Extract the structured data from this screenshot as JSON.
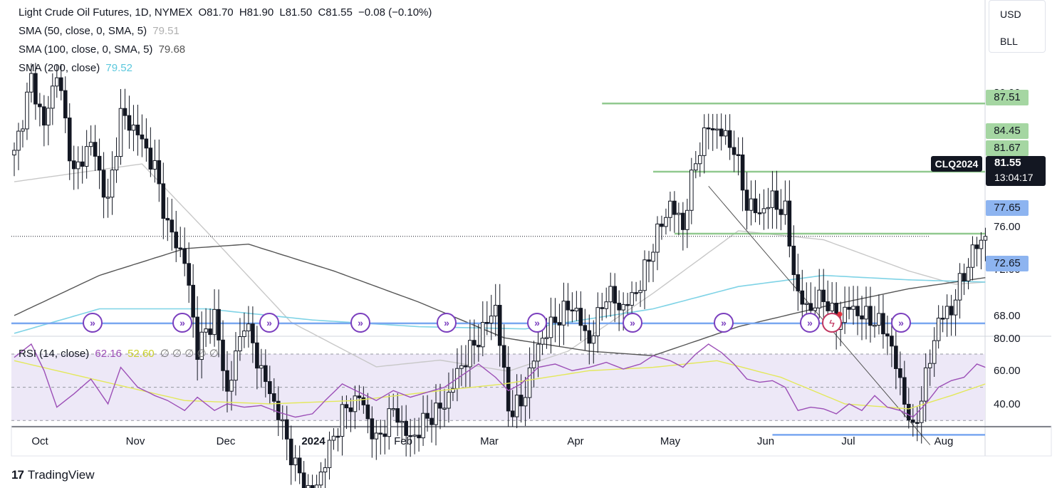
{
  "legend": {
    "title": "Light Crude Oil Futures, 1D, NYMEX",
    "open": "O81.70",
    "high": "H81.90",
    "low": "L81.50",
    "close": "C81.55",
    "change": "−0.08 (−0.10%)",
    "sma50_label": "SMA (50, close, 0, SMA, 5)",
    "sma50_value": "79.51",
    "sma100_label": "SMA (100, close, 0, SMA, 5)",
    "sma100_value": "79.68",
    "sma200_label": "SMA (200, close)",
    "sma200_value": "79.52",
    "rsi_label": "RSI (14, close)",
    "rsi_value": "62.16",
    "rsi_ma_value": "52.60",
    "rsi_extra": "∅ ∅ ∅ ∅ ∅"
  },
  "toolbar": {
    "currency": "USD",
    "unit": "BLL"
  },
  "ticker": {
    "symbol": "CLQ2024",
    "last_price": "81.55",
    "countdown": "13:04:17"
  },
  "levels": [
    "87.51",
    "84.45",
    "81.67",
    "77.65",
    "72.65"
  ],
  "brand": "TradingView",
  "colors": {
    "up": "#ffffff",
    "down": "#131722",
    "sma50": "#c8c8c8",
    "sma100": "#555555",
    "sma200": "#7fd3e6",
    "resistance": "#91c98f",
    "support": "#7aa7f0",
    "rsi": "#9c4fb7",
    "rsi_ma": "#e3e85a",
    "rsi_band": "#ede8f7"
  },
  "chart_data": {
    "type": "candlestick",
    "y_axis_ticks": [
      "80.00",
      "76.00",
      "72.00",
      "68.00"
    ],
    "rsi_axis_ticks": [
      "80.00",
      "60.00",
      "40.00"
    ],
    "x_axis_labels": [
      "Oct",
      "Nov",
      "Dec",
      "2024",
      "Feb",
      "Mar",
      "Apr",
      "May",
      "Jun",
      "Jul",
      "Aug"
    ],
    "ylim": [
      66,
      91
    ],
    "rsi_ylim": [
      25,
      82
    ],
    "horizontal_levels": [
      {
        "price": 87.51,
        "label": "87.51",
        "kind": "resistance"
      },
      {
        "price": 84.45,
        "label": "84.45",
        "kind": "resistance"
      },
      {
        "price": 81.67,
        "label": "81.67",
        "kind": "resistance"
      },
      {
        "price": 77.65,
        "label": "77.65",
        "kind": "support"
      },
      {
        "price": 72.65,
        "label": "72.65",
        "kind": "support"
      }
    ],
    "close_path": [
      [
        0,
        85.2
      ],
      [
        4,
        88.6
      ],
      [
        7,
        86.5
      ],
      [
        10,
        89.0
      ],
      [
        14,
        84.3
      ],
      [
        18,
        85.8
      ],
      [
        22,
        83.0
      ],
      [
        25,
        87.0
      ],
      [
        29,
        86.2
      ],
      [
        33,
        84.6
      ],
      [
        36,
        82.0
      ],
      [
        40,
        80.5
      ],
      [
        43,
        76.5
      ],
      [
        47,
        78.0
      ],
      [
        50,
        74.5
      ],
      [
        54,
        77.8
      ],
      [
        58,
        75.5
      ],
      [
        62,
        73.6
      ],
      [
        66,
        71.2
      ],
      [
        70,
        69.8
      ],
      [
        73,
        71.5
      ],
      [
        77,
        73.6
      ],
      [
        81,
        74.4
      ],
      [
        85,
        72.3
      ],
      [
        89,
        73.8
      ],
      [
        93,
        72.4
      ],
      [
        97,
        73.4
      ],
      [
        101,
        74.0
      ],
      [
        105,
        75.8
      ],
      [
        109,
        77.0
      ],
      [
        113,
        78.4
      ],
      [
        116,
        73.8
      ],
      [
        119,
        74.0
      ],
      [
        123,
        76.7
      ],
      [
        127,
        77.8
      ],
      [
        131,
        78.5
      ],
      [
        135,
        76.8
      ],
      [
        139,
        79.0
      ],
      [
        143,
        78.3
      ],
      [
        147,
        79.4
      ],
      [
        150,
        81.2
      ],
      [
        154,
        83.0
      ],
      [
        157,
        82.0
      ],
      [
        160,
        85.0
      ],
      [
        163,
        86.5
      ],
      [
        166,
        86.2
      ],
      [
        169,
        85.5
      ],
      [
        172,
        83.0
      ],
      [
        175,
        82.6
      ],
      [
        178,
        83.2
      ],
      [
        181,
        82.6
      ],
      [
        184,
        78.8
      ],
      [
        187,
        78.3
      ],
      [
        190,
        78.9
      ],
      [
        193,
        77.6
      ],
      [
        196,
        78.4
      ],
      [
        199,
        78.0
      ],
      [
        202,
        77.8
      ],
      [
        205,
        77.2
      ],
      [
        208,
        75.0
      ],
      [
        211,
        72.7
      ],
      [
        214,
        75.2
      ],
      [
        217,
        77.8
      ],
      [
        220,
        78.3
      ],
      [
        223,
        79.9
      ],
      [
        226,
        81.2
      ],
      [
        228,
        81.55
      ]
    ],
    "sma50_path": [
      [
        0,
        84.0
      ],
      [
        30,
        84.8
      ],
      [
        45,
        81.8
      ],
      [
        65,
        77.7
      ],
      [
        85,
        75.7
      ],
      [
        100,
        76.0
      ],
      [
        116,
        75.5
      ],
      [
        130,
        76.4
      ],
      [
        150,
        79.0
      ],
      [
        170,
        81.8
      ],
      [
        190,
        81.4
      ],
      [
        210,
        80.0
      ],
      [
        221,
        79.4
      ],
      [
        228,
        79.5
      ]
    ],
    "sma100_path": [
      [
        0,
        78.0
      ],
      [
        20,
        79.8
      ],
      [
        40,
        81.0
      ],
      [
        55,
        81.2
      ],
      [
        75,
        80.0
      ],
      [
        95,
        78.6
      ],
      [
        115,
        77.0
      ],
      [
        135,
        76.4
      ],
      [
        150,
        76.2
      ],
      [
        170,
        77.5
      ],
      [
        190,
        78.4
      ],
      [
        210,
        79.2
      ],
      [
        228,
        79.7
      ]
    ],
    "sma200_path": [
      [
        0,
        77.2
      ],
      [
        20,
        78.3
      ],
      [
        45,
        78.3
      ],
      [
        70,
        77.8
      ],
      [
        95,
        77.5
      ],
      [
        120,
        77.4
      ],
      [
        150,
        78.3
      ],
      [
        170,
        79.3
      ],
      [
        190,
        79.8
      ],
      [
        210,
        79.6
      ],
      [
        228,
        79.5
      ]
    ],
    "trendline": [
      [
        163,
        83.8
      ],
      [
        215,
        72.2
      ]
    ],
    "rsi_path": [
      [
        0,
        68
      ],
      [
        4,
        76
      ],
      [
        7,
        60
      ],
      [
        10,
        38
      ],
      [
        14,
        46
      ],
      [
        18,
        55
      ],
      [
        22,
        40
      ],
      [
        25,
        62
      ],
      [
        29,
        50
      ],
      [
        33,
        45
      ],
      [
        36,
        42
      ],
      [
        40,
        36
      ],
      [
        43,
        44
      ],
      [
        47,
        36
      ],
      [
        50,
        40
      ],
      [
        54,
        38
      ],
      [
        58,
        39
      ],
      [
        62,
        35
      ],
      [
        66,
        32
      ],
      [
        70,
        34
      ],
      [
        73,
        42
      ],
      [
        77,
        52
      ],
      [
        81,
        47
      ],
      [
        85,
        42
      ],
      [
        89,
        48
      ],
      [
        93,
        44
      ],
      [
        97,
        47
      ],
      [
        101,
        50
      ],
      [
        105,
        57
      ],
      [
        109,
        64
      ],
      [
        113,
        56
      ],
      [
        116,
        48
      ],
      [
        119,
        52
      ],
      [
        123,
        62
      ],
      [
        127,
        64
      ],
      [
        131,
        60
      ],
      [
        135,
        62
      ],
      [
        139,
        65
      ],
      [
        143,
        61
      ],
      [
        147,
        64
      ],
      [
        150,
        69
      ],
      [
        154,
        66
      ],
      [
        157,
        62
      ],
      [
        160,
        70
      ],
      [
        163,
        76
      ],
      [
        166,
        71
      ],
      [
        169,
        64
      ],
      [
        172,
        55
      ],
      [
        175,
        53
      ],
      [
        178,
        54
      ],
      [
        181,
        50
      ],
      [
        184,
        36
      ],
      [
        187,
        38
      ],
      [
        190,
        37
      ],
      [
        193,
        34
      ],
      [
        196,
        40
      ],
      [
        199,
        36
      ],
      [
        202,
        45
      ],
      [
        205,
        38
      ],
      [
        208,
        36
      ],
      [
        211,
        32
      ],
      [
        214,
        40
      ],
      [
        217,
        50
      ],
      [
        220,
        54
      ],
      [
        223,
        56
      ],
      [
        226,
        64
      ],
      [
        228,
        62
      ]
    ],
    "rsi_ma_path": [
      [
        0,
        66
      ],
      [
        20,
        54
      ],
      [
        40,
        42
      ],
      [
        60,
        40
      ],
      [
        80,
        42
      ],
      [
        100,
        48
      ],
      [
        115,
        52
      ],
      [
        135,
        60
      ],
      [
        150,
        62
      ],
      [
        165,
        66
      ],
      [
        180,
        56
      ],
      [
        195,
        40
      ],
      [
        210,
        37
      ],
      [
        220,
        45
      ],
      [
        228,
        52
      ]
    ],
    "rsi_levels": [
      70,
      50,
      30
    ]
  }
}
